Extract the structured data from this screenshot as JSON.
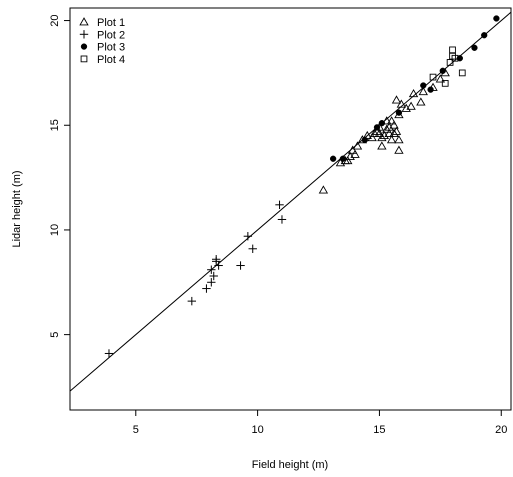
{
  "chart_data": {
    "type": "scatter",
    "xlabel": "Field height (m)",
    "ylabel": "Lidar height (m)",
    "xlim": [
      2.3,
      20.4
    ],
    "ylim": [
      1.4,
      20.6
    ],
    "xticks": [
      5,
      10,
      15,
      20
    ],
    "yticks": [
      5,
      10,
      15,
      20
    ],
    "xtick_labels": [
      "5",
      "10",
      "15",
      "20"
    ],
    "ytick_labels": [
      "5",
      "10",
      "15",
      "20"
    ],
    "reference_line": {
      "type": "1:1",
      "slope": 1,
      "intercept": 0
    },
    "legend_position": "top-left",
    "series": [
      {
        "name": "Plot 1",
        "marker": "open-triangle",
        "points": [
          [
            12.7,
            11.9
          ],
          [
            13.4,
            13.2
          ],
          [
            13.6,
            13.3
          ],
          [
            13.7,
            13.3
          ],
          [
            13.8,
            13.5
          ],
          [
            13.9,
            13.8
          ],
          [
            14.0,
            13.6
          ],
          [
            14.1,
            14.0
          ],
          [
            14.3,
            14.3
          ],
          [
            14.5,
            14.5
          ],
          [
            14.7,
            14.4
          ],
          [
            14.8,
            14.6
          ],
          [
            14.9,
            14.7
          ],
          [
            15.0,
            14.6
          ],
          [
            15.0,
            14.9
          ],
          [
            15.1,
            14.0
          ],
          [
            15.1,
            14.4
          ],
          [
            15.2,
            14.5
          ],
          [
            15.3,
            15.2
          ],
          [
            15.3,
            14.8
          ],
          [
            15.4,
            14.6
          ],
          [
            15.4,
            14.9
          ],
          [
            15.5,
            15.2
          ],
          [
            15.5,
            14.3
          ],
          [
            15.6,
            14.6
          ],
          [
            15.6,
            15.0
          ],
          [
            15.7,
            16.2
          ],
          [
            15.7,
            14.7
          ],
          [
            15.8,
            15.5
          ],
          [
            15.8,
            13.8
          ],
          [
            15.8,
            14.3
          ],
          [
            15.9,
            16.0
          ],
          [
            16.1,
            15.8
          ],
          [
            16.3,
            15.9
          ],
          [
            16.4,
            16.5
          ],
          [
            16.7,
            16.1
          ],
          [
            16.8,
            16.6
          ],
          [
            17.2,
            16.8
          ],
          [
            17.5,
            17.2
          ],
          [
            17.7,
            17.5
          ]
        ]
      },
      {
        "name": "Plot 2",
        "marker": "plus",
        "points": [
          [
            3.9,
            4.1
          ],
          [
            7.3,
            6.6
          ],
          [
            7.9,
            7.2
          ],
          [
            8.1,
            7.5
          ],
          [
            8.1,
            8.1
          ],
          [
            8.2,
            7.8
          ],
          [
            8.3,
            8.5
          ],
          [
            8.3,
            8.6
          ],
          [
            8.4,
            8.3
          ],
          [
            9.3,
            8.3
          ],
          [
            9.6,
            9.7
          ],
          [
            9.8,
            9.1
          ],
          [
            10.9,
            11.2
          ],
          [
            11.0,
            10.5
          ]
        ]
      },
      {
        "name": "Plot 3",
        "marker": "filled-circle",
        "points": [
          [
            13.1,
            13.4
          ],
          [
            13.5,
            13.4
          ],
          [
            14.4,
            14.3
          ],
          [
            14.9,
            14.9
          ],
          [
            15.1,
            15.1
          ],
          [
            15.8,
            15.6
          ],
          [
            16.8,
            16.9
          ],
          [
            17.1,
            16.7
          ],
          [
            17.6,
            17.6
          ],
          [
            18.3,
            18.2
          ],
          [
            18.9,
            18.7
          ],
          [
            19.3,
            19.3
          ],
          [
            19.8,
            20.1
          ]
        ]
      },
      {
        "name": "Plot 4",
        "marker": "open-square",
        "points": [
          [
            17.2,
            17.3
          ],
          [
            17.7,
            17.0
          ],
          [
            17.9,
            18.0
          ],
          [
            18.0,
            18.3
          ],
          [
            18.0,
            18.6
          ],
          [
            18.1,
            18.2
          ],
          [
            18.4,
            17.5
          ]
        ]
      }
    ]
  }
}
